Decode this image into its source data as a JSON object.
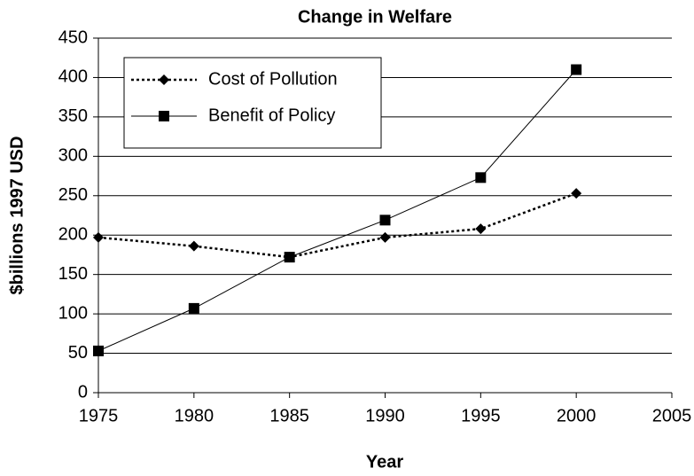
{
  "chart_data": {
    "type": "line",
    "title": "Change in Welfare",
    "x_label": "Year",
    "y_label": "$billions 1997 USD",
    "x": [
      1975,
      1980,
      1985,
      1990,
      1995,
      2000
    ],
    "series": [
      {
        "name": "Cost of Pollution",
        "color": "#000000",
        "line_style": "dotted",
        "marker": "diamond",
        "values": [
          197,
          186,
          172,
          197,
          208,
          253
        ]
      },
      {
        "name": "Benefit of Policy",
        "color": "#000000",
        "line_style": "solid",
        "marker": "square",
        "values": [
          53,
          107,
          172,
          219,
          273,
          410
        ]
      }
    ],
    "xlim": [
      1975,
      2005
    ],
    "xticks": [
      1975,
      1980,
      1985,
      1990,
      1995,
      2000,
      2005
    ],
    "ylim": [
      0,
      450
    ],
    "yticks": [
      0,
      50,
      100,
      150,
      200,
      250,
      300,
      350,
      400,
      450
    ],
    "grid": true,
    "legend_position": "upper-left"
  }
}
